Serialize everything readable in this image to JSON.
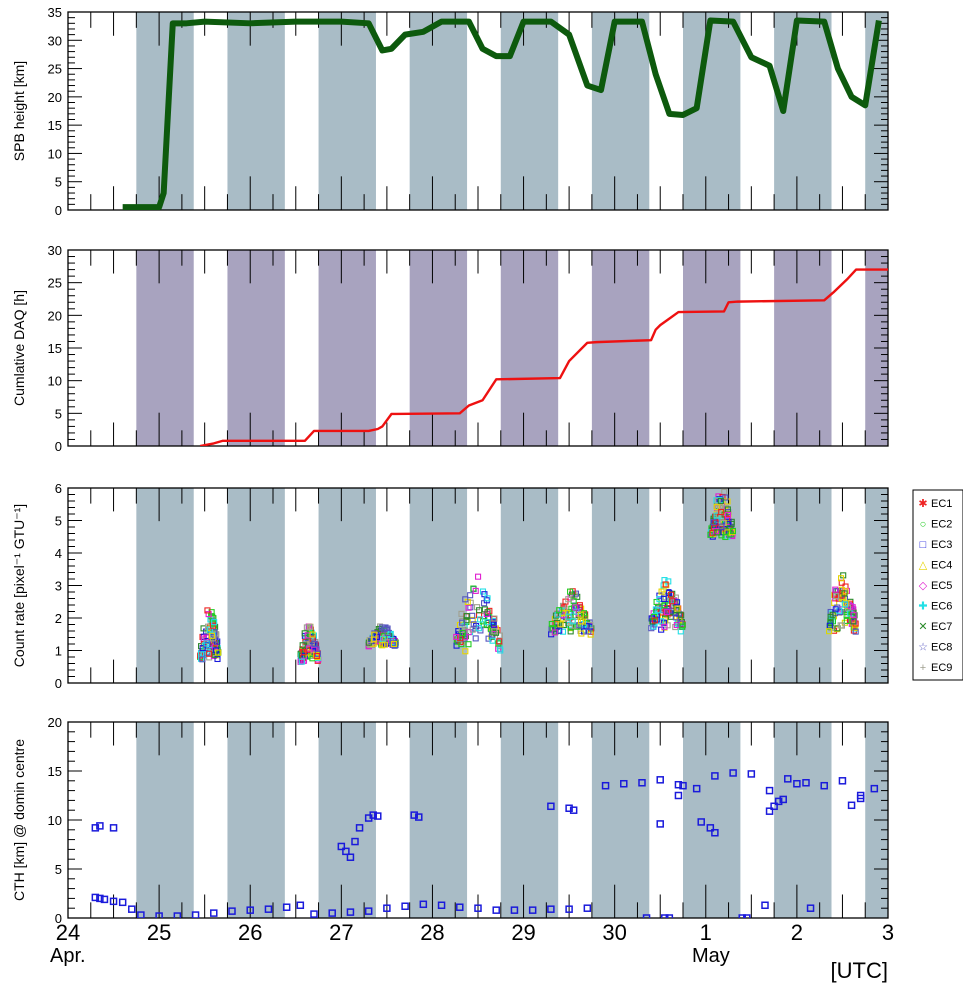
{
  "chart_data": [
    {
      "type": "line",
      "ylabel": "SPB height [km]",
      "ylim": [
        0,
        35
      ],
      "yticks": [
        "0",
        "5",
        "10",
        "15",
        "20",
        "25",
        "30",
        "35"
      ],
      "xlim": [
        24,
        33
      ],
      "band_color": "#a9bcc6",
      "series": [
        {
          "color": "#0d5a0d",
          "x": [
            24.6,
            25.0,
            25.05,
            25.15,
            25.3,
            25.5,
            26.0,
            26.5,
            27.0,
            27.3,
            27.45,
            27.55,
            27.7,
            27.9,
            28.1,
            28.4,
            28.55,
            28.7,
            28.85,
            29.0,
            29.3,
            29.5,
            29.7,
            29.85,
            30.0,
            30.3,
            30.45,
            30.6,
            30.75,
            30.9,
            31.05,
            31.3,
            31.5,
            31.7,
            31.85,
            32.0,
            32.3,
            32.45,
            32.6,
            32.75,
            32.9
          ],
          "y": [
            0.5,
            0.5,
            3,
            33,
            33,
            33.3,
            33,
            33.3,
            33.3,
            33,
            28.2,
            28.5,
            31,
            31.5,
            33.3,
            33.3,
            28.5,
            27.2,
            27.2,
            33.3,
            33.3,
            31,
            22,
            21.2,
            33.3,
            33.3,
            24,
            17,
            16.8,
            18,
            33.5,
            33.3,
            27,
            25.5,
            17.5,
            33.5,
            33.3,
            25,
            20,
            18.5,
            33.5
          ]
        }
      ]
    },
    {
      "type": "line",
      "ylabel": "Cumlative DAQ [h]",
      "ylim": [
        0,
        30
      ],
      "yticks": [
        "0",
        "5",
        "10",
        "15",
        "20",
        "25",
        "30"
      ],
      "xlim": [
        24,
        33
      ],
      "band_color": "#a8a3bf",
      "series": [
        {
          "color": "#ee1111",
          "x": [
            25.45,
            25.6,
            25.7,
            26.6,
            26.7,
            27.3,
            27.4,
            27.45,
            27.55,
            27.6,
            28.3,
            28.4,
            28.55,
            28.7,
            29.4,
            29.5,
            29.7,
            29.8,
            30.4,
            30.45,
            30.5,
            30.6,
            30.7,
            31.2,
            31.25,
            31.35,
            32.3,
            32.4,
            32.55,
            32.65,
            33.0
          ],
          "y": [
            0,
            0.4,
            0.8,
            0.8,
            2.3,
            2.3,
            2.6,
            3.0,
            4.9,
            4.9,
            5.0,
            6.2,
            7.0,
            10.2,
            10.4,
            13.0,
            15.8,
            15.9,
            16.2,
            17.8,
            18.5,
            19.5,
            20.5,
            20.6,
            22.0,
            22.1,
            22.3,
            23.5,
            25.5,
            27.0,
            27.0
          ]
        }
      ]
    },
    {
      "type": "scatter",
      "ylabel": "Count rate [pixel⁻¹ GTU⁻¹]",
      "ylim": [
        0,
        6
      ],
      "yticks": [
        "0",
        "1",
        "2",
        "3",
        "4",
        "5",
        "6"
      ],
      "xlim": [
        24,
        33
      ],
      "band_color": "#a9bcc6",
      "legend": [
        {
          "label": "EC1",
          "color": "#ee2222",
          "marker": "✱"
        },
        {
          "label": "EC2",
          "color": "#22cc22",
          "marker": "○"
        },
        {
          "label": "EC3",
          "color": "#1a1adb",
          "marker": "□"
        },
        {
          "label": "EC4",
          "color": "#e6d400",
          "marker": "△"
        },
        {
          "label": "EC5",
          "color": "#e020d0",
          "marker": "◇"
        },
        {
          "label": "EC6",
          "color": "#22e0e6",
          "marker": "✚"
        },
        {
          "label": "EC7",
          "color": "#2a8a2a",
          "marker": "✕"
        },
        {
          "label": "EC8",
          "color": "#5656c0",
          "marker": "☆"
        },
        {
          "label": "EC9",
          "color": "#a0a090",
          "marker": "+"
        }
      ],
      "clusters": [
        {
          "x0": 25.45,
          "x1": 25.65,
          "ylo": 0.1,
          "yhi": 2.5
        },
        {
          "x0": 26.55,
          "x1": 26.75,
          "ylo": 0.2,
          "yhi": 1.9
        },
        {
          "x0": 27.3,
          "x1": 27.6,
          "ylo": 0.9,
          "yhi": 1.8
        },
        {
          "x0": 28.25,
          "x1": 28.75,
          "ylo": 0.1,
          "yhi": 3.4
        },
        {
          "x0": 29.3,
          "x1": 29.75,
          "ylo": 1.0,
          "yhi": 2.9
        },
        {
          "x0": 30.4,
          "x1": 30.75,
          "ylo": 1.0,
          "yhi": 3.3
        },
        {
          "x0": 31.05,
          "x1": 31.3,
          "ylo": 3.9,
          "yhi": 6.0
        },
        {
          "x0": 32.35,
          "x1": 32.65,
          "ylo": 0.9,
          "yhi": 3.5
        }
      ]
    },
    {
      "type": "scatter",
      "ylabel": "CTH [km] @ domin centre",
      "ylim": [
        0,
        20
      ],
      "yticks": [
        "0",
        "5",
        "10",
        "15",
        "20"
      ],
      "xlim": [
        24,
        33
      ],
      "band_color": "#a9bcc6",
      "xticklabels": [
        "24",
        "25",
        "26",
        "27",
        "28",
        "29",
        "30",
        "1",
        "2",
        "3"
      ],
      "month_labels": [
        "Apr.",
        "May"
      ],
      "xunit": "[UTC]",
      "series": [
        {
          "color": "#1a1adb",
          "x": [
            24.3,
            24.35,
            24.4,
            24.5,
            24.6,
            24.7,
            24.8,
            25.0,
            25.2,
            25.4,
            25.6,
            25.8,
            26.0,
            26.2,
            26.4,
            26.55,
            26.7,
            26.9,
            27.1,
            27.3,
            27.5,
            27.7,
            27.9,
            28.1,
            28.3,
            28.5,
            28.7,
            28.9,
            29.1,
            29.3,
            29.5,
            29.7,
            29.9,
            30.1,
            30.3,
            30.5,
            30.7,
            30.9,
            31.1,
            31.3,
            31.5,
            31.7,
            31.9,
            32.1,
            32.3,
            32.5,
            32.7,
            32.85,
            24.3,
            24.35,
            24.5,
            27.0,
            27.05,
            27.1,
            27.15,
            27.2,
            27.3,
            27.35,
            27.4,
            27.8,
            27.85,
            29.3,
            29.5,
            29.55,
            30.5,
            30.7,
            30.75,
            30.95,
            31.05,
            31.1,
            31.7,
            31.75,
            31.8,
            31.85,
            32.0,
            32.6,
            32.7,
            30.35,
            30.55,
            30.6,
            31.4,
            31.45,
            31.65,
            32.15
          ],
          "y": [
            2.1,
            2.0,
            1.9,
            1.7,
            1.6,
            0.9,
            0.3,
            0.2,
            0.2,
            0.3,
            0.5,
            0.7,
            0.8,
            0.9,
            1.1,
            1.3,
            0.4,
            0.5,
            0.6,
            0.7,
            1.0,
            1.2,
            1.4,
            1.3,
            1.1,
            1.0,
            0.8,
            0.8,
            0.8,
            0.9,
            0.9,
            1.0,
            13.5,
            13.7,
            13.8,
            14.1,
            13.6,
            13.2,
            14.5,
            14.8,
            14.7,
            13.0,
            14.2,
            13.8,
            13.5,
            14.0,
            12.2,
            13.2,
            9.2,
            9.4,
            9.2,
            7.3,
            6.8,
            6.2,
            7.8,
            9.2,
            10.2,
            10.5,
            10.4,
            10.5,
            10.3,
            11.4,
            11.2,
            11.0,
            9.6,
            12.5,
            13.5,
            9.8,
            9.2,
            8.7,
            10.9,
            11.4,
            11.9,
            12.1,
            13.7,
            11.5,
            12.5,
            0.0,
            0.0,
            0.0,
            0.0,
            0.0,
            1.3,
            1.0
          ]
        }
      ]
    }
  ]
}
